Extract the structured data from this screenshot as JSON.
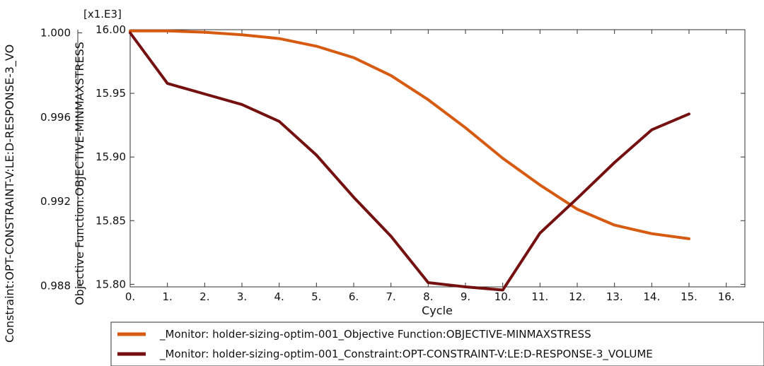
{
  "chart_data": {
    "type": "line",
    "xlabel": "Cycle",
    "x_ticks": [
      "0.",
      "1.",
      "2.",
      "3.",
      "4.",
      "5.",
      "6.",
      "7.",
      "8.",
      "9.",
      "10.",
      "11.",
      "12.",
      "13.",
      "14.",
      "15.",
      "16."
    ],
    "xlim": [
      0,
      16.5
    ],
    "grid": false,
    "legend": "bottom",
    "y_left": {
      "label": "Constraint:OPT-CONSTRAINT-V:LE:D-RESPONSE-3_VO",
      "ticks": [
        "1.000",
        "0.996",
        "0.992",
        "0.988"
      ],
      "tick_values": [
        1.0,
        0.996,
        0.992,
        0.988
      ],
      "range": [
        0.98795,
        1.00015
      ]
    },
    "y_right": {
      "label": "Objective Function:OBJECTIVE-MINMAXSTRESS",
      "multiplier": "[x1.E3]",
      "ticks": [
        "16.00",
        "15.95",
        "15.90",
        "15.85",
        "15.80"
      ],
      "tick_values": [
        16.0,
        15.95,
        15.9,
        15.85,
        15.8
      ],
      "range": [
        15.798,
        16.0
      ]
    },
    "series": [
      {
        "name": "_Monitor: holder-sizing-optim-001_Objective Function:OBJECTIVE-MINMAXSTRESS",
        "axis": "right",
        "color": "#d65a10",
        "x": [
          0,
          1,
          2,
          3,
          4,
          5,
          6,
          7,
          8,
          9,
          10,
          11,
          12,
          13,
          14,
          15
        ],
        "values": [
          15.999,
          15.999,
          15.998,
          15.996,
          15.993,
          15.987,
          15.978,
          15.964,
          15.945,
          15.923,
          15.899,
          15.878,
          15.859,
          15.8465,
          15.8398,
          15.8358
        ]
      },
      {
        "name": "_Monitor: holder-sizing-optim-001_Constraint:OPT-CONSTRAINT-V:LE:D-RESPONSE-3_VOLUME",
        "axis": "left",
        "color": "#741010",
        "x": [
          0,
          1,
          2,
          3,
          4,
          5,
          6,
          7,
          8,
          9,
          10,
          11,
          12,
          13,
          14,
          15
        ],
        "values": [
          1.0,
          0.9976,
          0.9971,
          0.9966,
          0.9958,
          0.9942,
          0.9922,
          0.99035,
          0.98815,
          0.98795,
          0.9878,
          0.9905,
          0.99215,
          0.99385,
          0.9954,
          0.99615
        ]
      }
    ]
  }
}
